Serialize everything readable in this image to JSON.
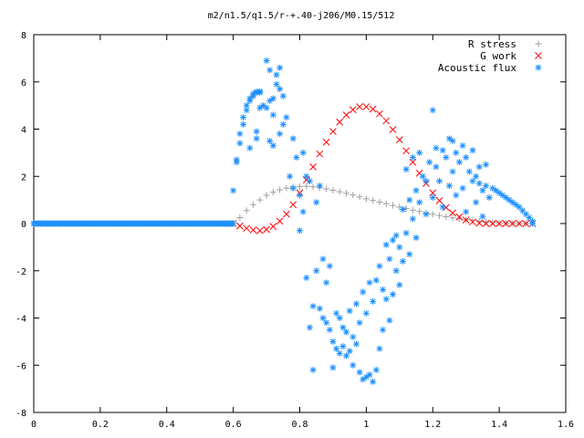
{
  "chart_data": {
    "type": "scatter",
    "title": "m2/n1.5/q1.5/r-+.40-j206/M0.15/512",
    "xlabel": "",
    "ylabel": "",
    "xlim": [
      0,
      1.6
    ],
    "ylim": [
      -8,
      8
    ],
    "x_ticks": [
      "0",
      "0.2",
      "0.4",
      "0.6",
      "0.8",
      "1",
      "1.2",
      "1.4",
      "1.6"
    ],
    "y_ticks": [
      "8",
      "6",
      "4",
      "2",
      "0",
      "-2",
      "-4",
      "-6",
      "-8"
    ],
    "grid": false,
    "legend_position": "top-right",
    "series": [
      {
        "name": "R stress",
        "marker": "plus",
        "color": "#a0a0a0",
        "points": [
          [
            0.6,
            0.0
          ],
          [
            0.62,
            0.25
          ],
          [
            0.64,
            0.55
          ],
          [
            0.66,
            0.8
          ],
          [
            0.68,
            1.0
          ],
          [
            0.7,
            1.2
          ],
          [
            0.72,
            1.33
          ],
          [
            0.74,
            1.43
          ],
          [
            0.76,
            1.5
          ],
          [
            0.78,
            1.55
          ],
          [
            0.8,
            1.57
          ],
          [
            0.82,
            1.58
          ],
          [
            0.84,
            1.56
          ],
          [
            0.86,
            1.52
          ],
          [
            0.88,
            1.47
          ],
          [
            0.9,
            1.41
          ],
          [
            0.92,
            1.35
          ],
          [
            0.94,
            1.28
          ],
          [
            0.96,
            1.21
          ],
          [
            0.98,
            1.13
          ],
          [
            1.0,
            1.05
          ],
          [
            1.02,
            0.98
          ],
          [
            1.04,
            0.91
          ],
          [
            1.06,
            0.84
          ],
          [
            1.08,
            0.77
          ],
          [
            1.1,
            0.7
          ],
          [
            1.12,
            0.64
          ],
          [
            1.14,
            0.57
          ],
          [
            1.16,
            0.51
          ],
          [
            1.18,
            0.45
          ],
          [
            1.2,
            0.39
          ],
          [
            1.22,
            0.34
          ],
          [
            1.24,
            0.29
          ],
          [
            1.26,
            0.24
          ],
          [
            1.28,
            0.2
          ],
          [
            1.3,
            0.16
          ],
          [
            1.32,
            0.13
          ],
          [
            1.34,
            0.1
          ],
          [
            1.36,
            0.07
          ],
          [
            1.38,
            0.05
          ],
          [
            1.4,
            0.03
          ],
          [
            1.42,
            0.02
          ],
          [
            1.44,
            0.01
          ],
          [
            1.46,
            0.0
          ],
          [
            1.48,
            0.0
          ]
        ]
      },
      {
        "name": "G work",
        "marker": "cross",
        "color": "#ff0000",
        "points": [
          [
            0.6,
            0.0
          ],
          [
            0.62,
            -0.1
          ],
          [
            0.64,
            -0.2
          ],
          [
            0.66,
            -0.27
          ],
          [
            0.68,
            -0.3
          ],
          [
            0.7,
            -0.25
          ],
          [
            0.72,
            -0.12
          ],
          [
            0.74,
            0.1
          ],
          [
            0.76,
            0.4
          ],
          [
            0.78,
            0.8
          ],
          [
            0.8,
            1.3
          ],
          [
            0.82,
            1.85
          ],
          [
            0.84,
            2.4
          ],
          [
            0.86,
            2.95
          ],
          [
            0.88,
            3.45
          ],
          [
            0.9,
            3.9
          ],
          [
            0.92,
            4.3
          ],
          [
            0.94,
            4.6
          ],
          [
            0.96,
            4.82
          ],
          [
            0.98,
            4.95
          ],
          [
            1.0,
            4.95
          ],
          [
            1.02,
            4.85
          ],
          [
            1.04,
            4.65
          ],
          [
            1.06,
            4.35
          ],
          [
            1.08,
            3.98
          ],
          [
            1.1,
            3.55
          ],
          [
            1.12,
            3.08
          ],
          [
            1.14,
            2.6
          ],
          [
            1.16,
            2.13
          ],
          [
            1.18,
            1.7
          ],
          [
            1.2,
            1.3
          ],
          [
            1.22,
            0.97
          ],
          [
            1.24,
            0.68
          ],
          [
            1.26,
            0.45
          ],
          [
            1.28,
            0.28
          ],
          [
            1.3,
            0.15
          ],
          [
            1.32,
            0.07
          ],
          [
            1.34,
            0.02
          ],
          [
            1.36,
            0.0
          ],
          [
            1.38,
            0.0
          ],
          [
            1.4,
            0.0
          ],
          [
            1.42,
            0.0
          ],
          [
            1.44,
            0.0
          ],
          [
            1.46,
            0.0
          ],
          [
            1.48,
            0.0
          ],
          [
            1.5,
            0.0
          ]
        ]
      },
      {
        "name": "Acoustic flux",
        "marker": "star",
        "color": "#1e90ff",
        "points": [
          [
            0.0,
            0.0
          ],
          [
            0.02,
            0.0
          ],
          [
            0.04,
            0.0
          ],
          [
            0.06,
            0.0
          ],
          [
            0.08,
            0.0
          ],
          [
            0.1,
            0.0
          ],
          [
            0.12,
            0.0
          ],
          [
            0.14,
            0.0
          ],
          [
            0.16,
            0.0
          ],
          [
            0.18,
            0.0
          ],
          [
            0.2,
            0.0
          ],
          [
            0.22,
            0.0
          ],
          [
            0.24,
            0.0
          ],
          [
            0.26,
            0.0
          ],
          [
            0.28,
            0.0
          ],
          [
            0.3,
            0.0
          ],
          [
            0.32,
            0.0
          ],
          [
            0.34,
            0.0
          ],
          [
            0.36,
            0.0
          ],
          [
            0.38,
            0.0
          ],
          [
            0.4,
            0.0
          ],
          [
            0.42,
            0.0
          ],
          [
            0.44,
            0.0
          ],
          [
            0.46,
            0.0
          ],
          [
            0.48,
            0.0
          ],
          [
            0.5,
            0.0
          ],
          [
            0.52,
            0.0
          ],
          [
            0.54,
            0.0
          ],
          [
            0.56,
            0.0
          ],
          [
            0.58,
            0.0
          ],
          [
            0.6,
            0.0
          ],
          [
            0.6,
            1.4
          ],
          [
            0.61,
            2.7
          ],
          [
            0.61,
            2.6
          ],
          [
            0.62,
            3.4
          ],
          [
            0.62,
            3.8
          ],
          [
            0.63,
            4.2
          ],
          [
            0.63,
            4.5
          ],
          [
            0.64,
            4.8
          ],
          [
            0.64,
            5.0
          ],
          [
            0.65,
            5.2
          ],
          [
            0.65,
            5.3
          ],
          [
            0.66,
            5.4
          ],
          [
            0.66,
            5.5
          ],
          [
            0.67,
            5.55
          ],
          [
            0.67,
            5.58
          ],
          [
            0.68,
            5.6
          ],
          [
            0.68,
            5.55
          ],
          [
            0.67,
            3.9
          ],
          [
            0.67,
            3.6
          ],
          [
            0.65,
            3.2
          ],
          [
            0.68,
            4.9
          ],
          [
            0.69,
            5.0
          ],
          [
            0.7,
            6.9
          ],
          [
            0.7,
            4.9
          ],
          [
            0.71,
            6.5
          ],
          [
            0.71,
            5.2
          ],
          [
            0.72,
            5.3
          ],
          [
            0.72,
            4.6
          ],
          [
            0.73,
            6.3
          ],
          [
            0.73,
            5.9
          ],
          [
            0.74,
            6.6
          ],
          [
            0.74,
            5.7
          ],
          [
            0.75,
            5.4
          ],
          [
            0.76,
            4.5
          ],
          [
            0.71,
            3.5
          ],
          [
            0.72,
            3.3
          ],
          [
            0.74,
            3.8
          ],
          [
            0.75,
            4.2
          ],
          [
            0.77,
            2.0
          ],
          [
            0.78,
            3.6
          ],
          [
            0.78,
            1.5
          ],
          [
            0.79,
            2.8
          ],
          [
            0.8,
            1.2
          ],
          [
            0.8,
            -0.3
          ],
          [
            0.81,
            3.0
          ],
          [
            0.81,
            0.5
          ],
          [
            0.82,
            2.0
          ],
          [
            0.82,
            -2.3
          ],
          [
            0.83,
            1.8
          ],
          [
            0.83,
            -4.4
          ],
          [
            0.84,
            -3.5
          ],
          [
            0.84,
            -6.2
          ],
          [
            0.85,
            0.9
          ],
          [
            0.85,
            -2.0
          ],
          [
            0.86,
            1.6
          ],
          [
            0.86,
            -3.6
          ],
          [
            0.87,
            -4.0
          ],
          [
            0.87,
            -1.5
          ],
          [
            0.88,
            -2.5
          ],
          [
            0.88,
            -4.2
          ],
          [
            0.89,
            -1.8
          ],
          [
            0.89,
            -4.5
          ],
          [
            0.9,
            -5.0
          ],
          [
            0.9,
            -6.1
          ],
          [
            0.91,
            -5.3
          ],
          [
            0.91,
            -3.8
          ],
          [
            0.92,
            -5.5
          ],
          [
            0.92,
            -4.0
          ],
          [
            0.93,
            -5.2
          ],
          [
            0.93,
            -4.4
          ],
          [
            0.94,
            -5.6
          ],
          [
            0.94,
            -4.6
          ],
          [
            0.95,
            -5.4
          ],
          [
            0.95,
            -3.7
          ],
          [
            0.96,
            -6.0
          ],
          [
            0.96,
            -4.8
          ],
          [
            0.97,
            -5.1
          ],
          [
            0.97,
            -3.4
          ],
          [
            0.98,
            -6.3
          ],
          [
            0.98,
            -4.2
          ],
          [
            0.99,
            -6.6
          ],
          [
            0.99,
            -2.9
          ],
          [
            1.0,
            -6.5
          ],
          [
            1.0,
            -3.8
          ],
          [
            1.01,
            -6.4
          ],
          [
            1.01,
            -2.5
          ],
          [
            1.02,
            -6.7
          ],
          [
            1.02,
            -3.3
          ],
          [
            1.03,
            -6.2
          ],
          [
            1.03,
            -2.4
          ],
          [
            1.04,
            -5.3
          ],
          [
            1.04,
            -1.8
          ],
          [
            1.05,
            -4.5
          ],
          [
            1.05,
            -2.8
          ],
          [
            1.06,
            -3.2
          ],
          [
            1.06,
            -0.9
          ],
          [
            1.07,
            -4.1
          ],
          [
            1.07,
            -1.5
          ],
          [
            1.08,
            -3.0
          ],
          [
            1.08,
            -0.7
          ],
          [
            1.09,
            -2.0
          ],
          [
            1.09,
            -0.5
          ],
          [
            1.1,
            -1.0
          ],
          [
            1.1,
            -2.6
          ],
          [
            1.11,
            0.6
          ],
          [
            1.11,
            -1.6
          ],
          [
            1.12,
            -0.4
          ],
          [
            1.12,
            2.3
          ],
          [
            1.13,
            1.0
          ],
          [
            1.13,
            -1.3
          ],
          [
            1.14,
            0.2
          ],
          [
            1.14,
            2.8
          ],
          [
            1.15,
            1.4
          ],
          [
            1.15,
            -0.6
          ],
          [
            1.16,
            3.0
          ],
          [
            1.16,
            0.9
          ],
          [
            1.17,
            2.0
          ],
          [
            1.18,
            1.8
          ],
          [
            1.18,
            0.4
          ],
          [
            1.19,
            2.6
          ],
          [
            1.2,
            4.8
          ],
          [
            1.2,
            1.1
          ],
          [
            1.21,
            3.2
          ],
          [
            1.21,
            2.4
          ],
          [
            1.22,
            1.8
          ],
          [
            1.23,
            3.1
          ],
          [
            1.23,
            0.7
          ],
          [
            1.24,
            2.8
          ],
          [
            1.25,
            3.6
          ],
          [
            1.25,
            1.6
          ],
          [
            1.26,
            3.5
          ],
          [
            1.26,
            2.2
          ],
          [
            1.27,
            1.2
          ],
          [
            1.27,
            3.0
          ],
          [
            1.28,
            2.6
          ],
          [
            1.29,
            3.3
          ],
          [
            1.29,
            1.5
          ],
          [
            1.3,
            2.8
          ],
          [
            1.3,
            0.5
          ],
          [
            1.31,
            2.2
          ],
          [
            1.32,
            3.1
          ],
          [
            1.32,
            1.8
          ],
          [
            1.33,
            2.0
          ],
          [
            1.33,
            0.9
          ],
          [
            1.34,
            1.7
          ],
          [
            1.34,
            2.4
          ],
          [
            1.35,
            1.4
          ],
          [
            1.35,
            0.3
          ],
          [
            1.36,
            1.6
          ],
          [
            1.36,
            2.5
          ],
          [
            1.37,
            1.1
          ],
          [
            1.38,
            1.5
          ],
          [
            1.39,
            1.4
          ],
          [
            1.4,
            1.3
          ],
          [
            1.41,
            1.2
          ],
          [
            1.42,
            1.1
          ],
          [
            1.43,
            1.0
          ],
          [
            1.44,
            0.9
          ],
          [
            1.45,
            0.8
          ],
          [
            1.46,
            0.7
          ],
          [
            1.47,
            0.55
          ],
          [
            1.48,
            0.4
          ],
          [
            1.49,
            0.25
          ],
          [
            1.5,
            0.1
          ],
          [
            1.5,
            0.0
          ]
        ]
      }
    ]
  }
}
